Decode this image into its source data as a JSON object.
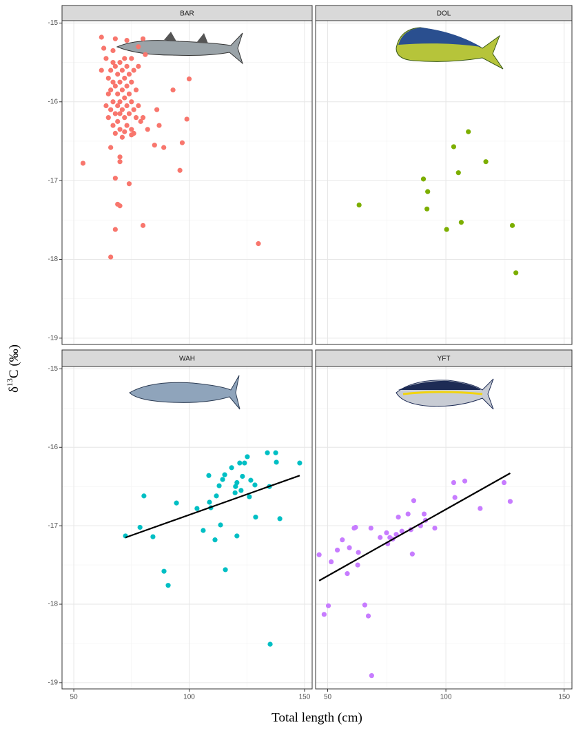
{
  "chart_data": {
    "type": "scatter",
    "xlabel": "Total length (cm)",
    "ylabel": "δ",
    "ylabel_sup": "13",
    "ylabel_rest": "C (‰)",
    "xlim": [
      44.9,
      153.3
    ],
    "ylim": [
      -19.08,
      -14.97
    ],
    "xticks": [
      50,
      100,
      150
    ],
    "minor_xticks": [
      75,
      125
    ],
    "yticks": [
      -15,
      -16,
      -17,
      -18,
      -19
    ],
    "minor_yticks": [
      -15.5,
      -16.5,
      -17.5,
      -18.5
    ],
    "grid": true,
    "panels": [
      {
        "name": "BAR",
        "color": "#f8766d",
        "x": [
          54,
          62,
          63,
          62,
          64,
          65,
          65,
          64,
          65,
          66,
          66,
          66,
          67,
          67,
          67,
          67,
          67,
          68,
          68,
          68,
          68,
          68,
          69,
          69,
          69,
          69,
          70,
          70,
          70,
          70,
          70,
          71,
          71,
          71,
          71,
          72,
          72,
          72,
          72,
          73,
          73,
          73,
          73,
          73,
          74,
          74,
          74,
          75,
          75,
          75,
          75,
          76,
          76,
          76,
          77,
          77,
          78,
          78,
          78,
          79,
          80,
          80,
          81,
          82,
          85,
          86,
          87,
          89,
          93,
          96,
          97,
          99,
          100,
          66,
          68,
          70,
          70,
          74,
          69,
          70,
          68,
          66,
          80,
          130,
          72,
          75
        ],
        "y": [
          -16.78,
          -15.18,
          -15.32,
          -15.6,
          -15.45,
          -15.7,
          -15.9,
          -16.05,
          -16.2,
          -16.1,
          -15.85,
          -15.6,
          -15.35,
          -15.5,
          -15.75,
          -16.0,
          -16.3,
          -15.2,
          -15.55,
          -15.8,
          -16.15,
          -16.4,
          -15.65,
          -15.9,
          -16.05,
          -16.25,
          -15.5,
          -15.75,
          -16.0,
          -16.15,
          -16.35,
          -15.6,
          -15.85,
          -16.1,
          -16.45,
          -15.45,
          -15.7,
          -15.95,
          -16.2,
          -15.22,
          -15.55,
          -15.8,
          -16.05,
          -16.3,
          -15.65,
          -15.9,
          -16.15,
          -15.45,
          -15.75,
          -16.0,
          -16.35,
          -15.6,
          -16.1,
          -16.4,
          -15.85,
          -16.2,
          -15.3,
          -15.55,
          -16.05,
          -16.25,
          -15.2,
          -16.2,
          -15.4,
          -16.35,
          -16.55,
          -16.1,
          -16.3,
          -16.58,
          -15.85,
          -16.87,
          -16.52,
          -16.22,
          -15.71,
          -16.58,
          -16.97,
          -16.7,
          -16.76,
          -17.04,
          -17.3,
          -17.32,
          -17.62,
          -17.97,
          -17.57,
          -17.8,
          -16.38,
          -16.42
        ]
      },
      {
        "name": "DOL",
        "color": "#7cae00",
        "x": [
          63.3,
          90.5,
          92.3,
          92.0,
          100.3,
          103.3,
          105.3,
          106.5,
          109.5,
          116.9,
          128.1,
          129.6
        ],
        "y": [
          -17.31,
          -16.98,
          -17.14,
          -17.36,
          -17.62,
          -16.57,
          -16.9,
          -17.53,
          -16.38,
          -16.76,
          -17.57,
          -18.17
        ]
      },
      {
        "name": "WAH",
        "color": "#00bfc4",
        "x": [
          72.4,
          78.7,
          80.4,
          84.3,
          89.1,
          90.9,
          94.5,
          103.4,
          106.1,
          108.5,
          108.8,
          109.4,
          111.2,
          111.8,
          113.0,
          113.6,
          114.5,
          115.4,
          115.7,
          118.4,
          119.9,
          120.1,
          120.7,
          120.7,
          121.9,
          122.5,
          123.1,
          124.0,
          125.2,
          126.1,
          126.7,
          128.5,
          128.8,
          133.9,
          134.8,
          135.1,
          137.5,
          137.8,
          139.3,
          147.9
        ],
        "y": [
          -17.13,
          -17.02,
          -16.62,
          -17.14,
          -17.58,
          -17.76,
          -16.71,
          -16.78,
          -17.06,
          -16.36,
          -16.7,
          -16.77,
          -17.18,
          -16.62,
          -16.49,
          -16.99,
          -16.41,
          -16.35,
          -17.56,
          -16.26,
          -16.58,
          -16.5,
          -17.13,
          -16.45,
          -16.2,
          -16.55,
          -16.37,
          -16.2,
          -16.12,
          -16.63,
          -16.42,
          -16.48,
          -16.89,
          -16.07,
          -16.5,
          -18.51,
          -16.07,
          -16.19,
          -16.91,
          -16.2
        ],
        "trend": {
          "x": [
            72.4,
            147.9
          ],
          "y": [
            -17.15,
            -16.36
          ]
        }
      },
      {
        "name": "YFT",
        "color": "#c77cff",
        "x": [
          46.4,
          48.5,
          50.3,
          51.5,
          54.1,
          56.2,
          58.3,
          59.2,
          61.2,
          61.8,
          62.7,
          63.0,
          65.7,
          68.3,
          68.6,
          67.2,
          72.2,
          74.9,
          75.4,
          76.3,
          77.5,
          79.0,
          79.9,
          81.4,
          84.0,
          85.2,
          85.8,
          86.4,
          89.3,
          90.8,
          91.4,
          95.3,
          103.3,
          103.8,
          108.0,
          114.5,
          124.6,
          127.2
        ],
        "y": [
          -17.37,
          -18.13,
          -18.02,
          -17.46,
          -17.31,
          -17.18,
          -17.61,
          -17.28,
          -17.03,
          -17.02,
          -17.5,
          -17.34,
          -18.01,
          -17.03,
          -18.91,
          -18.15,
          -17.15,
          -17.09,
          -17.23,
          -17.15,
          -17.17,
          -17.11,
          -16.89,
          -17.07,
          -16.85,
          -17.05,
          -17.36,
          -16.68,
          -17.0,
          -16.85,
          -16.93,
          -17.03,
          -16.45,
          -16.64,
          -16.43,
          -16.78,
          -16.45,
          -16.69
        ],
        "trend": {
          "x": [
            46.4,
            127.2
          ],
          "y": [
            -17.7,
            -16.33
          ]
        }
      }
    ]
  }
}
